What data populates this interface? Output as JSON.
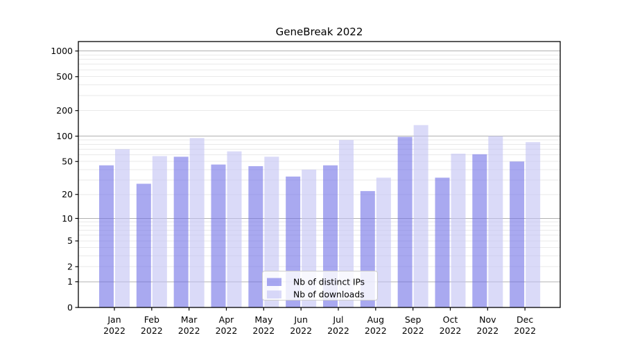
{
  "chart_data": {
    "type": "bar",
    "title": "GeneBreak 2022",
    "categories": [
      {
        "month": "Jan",
        "year": "2022"
      },
      {
        "month": "Feb",
        "year": "2022"
      },
      {
        "month": "Mar",
        "year": "2022"
      },
      {
        "month": "Apr",
        "year": "2022"
      },
      {
        "month": "May",
        "year": "2022"
      },
      {
        "month": "Jun",
        "year": "2022"
      },
      {
        "month": "Jul",
        "year": "2022"
      },
      {
        "month": "Aug",
        "year": "2022"
      },
      {
        "month": "Sep",
        "year": "2022"
      },
      {
        "month": "Oct",
        "year": "2022"
      },
      {
        "month": "Nov",
        "year": "2022"
      },
      {
        "month": "Dec",
        "year": "2022"
      }
    ],
    "series": [
      {
        "name": "Nb of distinct IPs",
        "color": "rgba(112,112,230,0.6)",
        "rendered_color": "#a9a9f0",
        "values": [
          45,
          27,
          57,
          46,
          44,
          33,
          45,
          22,
          98,
          32,
          61,
          50
        ]
      },
      {
        "name": "Nb of downloads",
        "color": "rgba(193,193,243,0.6)",
        "rendered_color": "#d9d9f8",
        "values": [
          70,
          58,
          95,
          66,
          57,
          40,
          90,
          32,
          135,
          62,
          100,
          85
        ]
      }
    ],
    "xlabel": "",
    "ylabel": "",
    "yscale": "log1p",
    "ylim": [
      0,
      1290
    ],
    "yticks": [
      {
        "value": 0,
        "label": "0"
      },
      {
        "value": 1,
        "label": "1"
      },
      {
        "value": 2,
        "label": "2"
      },
      {
        "value": 5,
        "label": "5"
      },
      {
        "value": 10,
        "label": "10"
      },
      {
        "value": 20,
        "label": "20"
      },
      {
        "value": 50,
        "label": "50"
      },
      {
        "value": 100,
        "label": "100"
      },
      {
        "value": 200,
        "label": "200"
      },
      {
        "value": 500,
        "label": "500"
      },
      {
        "value": 1000,
        "label": "1000"
      }
    ],
    "grid": {
      "major_values": [
        1,
        10,
        100,
        1000
      ],
      "major_color": "#b0b0b0",
      "minor_color": "#e9e9e9"
    },
    "legend_position": "lower center",
    "frame_color": "#000000"
  }
}
